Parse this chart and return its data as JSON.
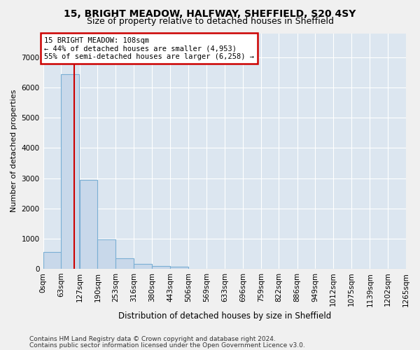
{
  "title": "15, BRIGHT MEADOW, HALFWAY, SHEFFIELD, S20 4SY",
  "subtitle": "Size of property relative to detached houses in Sheffield",
  "xlabel": "Distribution of detached houses by size in Sheffield",
  "ylabel": "Number of detached properties",
  "bar_color": "#c8d8ea",
  "bar_edge_color": "#7aafd4",
  "axes_bg_color": "#dce6f0",
  "fig_bg_color": "#f0f0f0",
  "grid_color": "#ffffff",
  "bin_edges": [
    0,
    63,
    127,
    190,
    253,
    316,
    380,
    443,
    506,
    569,
    633,
    696,
    759,
    822,
    886,
    949,
    1012,
    1075,
    1139,
    1202,
    1265
  ],
  "bar_heights": [
    550,
    6450,
    2950,
    970,
    335,
    160,
    100,
    70,
    0,
    0,
    0,
    0,
    0,
    0,
    0,
    0,
    0,
    0,
    0,
    0
  ],
  "property_size": 108,
  "vline_color": "#cc0000",
  "annotation_line1": "15 BRIGHT MEADOW: 108sqm",
  "annotation_line2": "← 44% of detached houses are smaller (4,953)",
  "annotation_line3": "55% of semi-detached houses are larger (6,258) →",
  "annotation_box_edgecolor": "#cc0000",
  "ylim": [
    0,
    7800
  ],
  "yticks": [
    0,
    1000,
    2000,
    3000,
    4000,
    5000,
    6000,
    7000
  ],
  "title_fontsize": 10,
  "subtitle_fontsize": 9,
  "ylabel_fontsize": 8,
  "xlabel_fontsize": 8.5,
  "tick_fontsize": 7.5,
  "annotation_fontsize": 7.5,
  "footer_line1": "Contains HM Land Registry data © Crown copyright and database right 2024.",
  "footer_line2": "Contains public sector information licensed under the Open Government Licence v3.0.",
  "footer_fontsize": 6.5
}
